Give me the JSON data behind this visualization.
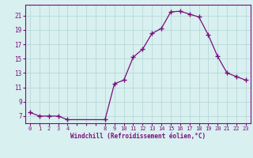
{
  "x": [
    0,
    1,
    2,
    3,
    4,
    8,
    9,
    10,
    11,
    12,
    13,
    14,
    15,
    16,
    17,
    18,
    19,
    20,
    21,
    22,
    23
  ],
  "y": [
    7.5,
    7.0,
    7.0,
    7.0,
    6.5,
    6.5,
    11.5,
    12.0,
    15.2,
    16.3,
    18.5,
    19.2,
    21.5,
    21.6,
    21.2,
    20.8,
    18.3,
    15.3,
    13.0,
    12.5,
    12.0
  ],
  "line_color": "#7b0d7b",
  "marker_color": "#7b0d7b",
  "bg_color": "#d8f0f0",
  "grid_color": "#b8d8d8",
  "tick_label_color": "#7b0d7b",
  "xlabel": "Windchill (Refroidissement éolien,°C)",
  "xlabel_color": "#7b0d7b",
  "yticks": [
    7,
    9,
    11,
    13,
    15,
    17,
    19,
    21
  ],
  "ylim": [
    6.0,
    22.5
  ],
  "xlim": [
    -0.5,
    23.5
  ],
  "xtick_labels": [
    "0",
    "1",
    "2",
    "3",
    "4",
    "",
    "",
    "",
    "8",
    "9",
    "10",
    "11",
    "12",
    "13",
    "14",
    "15",
    "16",
    "17",
    "18",
    "19",
    "20",
    "21",
    "22",
    "23"
  ],
  "xtick_positions": [
    0,
    1,
    2,
    3,
    4,
    5,
    6,
    7,
    8,
    9,
    10,
    11,
    12,
    13,
    14,
    15,
    16,
    17,
    18,
    19,
    20,
    21,
    22,
    23
  ]
}
